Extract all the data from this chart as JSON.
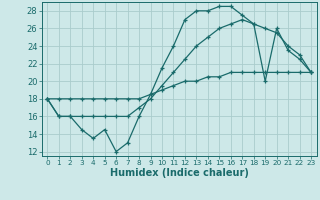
{
  "xlabel": "Humidex (Indice chaleur)",
  "ylabel": "",
  "xlim": [
    -0.5,
    23.5
  ],
  "ylim": [
    11.5,
    29.0
  ],
  "yticks": [
    12,
    14,
    16,
    18,
    20,
    22,
    24,
    26,
    28
  ],
  "xticks": [
    0,
    1,
    2,
    3,
    4,
    5,
    6,
    7,
    8,
    9,
    10,
    11,
    12,
    13,
    14,
    15,
    16,
    17,
    18,
    19,
    20,
    21,
    22,
    23
  ],
  "bg_color": "#cde8e8",
  "grid_color": "#aacccc",
  "line_color": "#1a6b6b",
  "line1_x": [
    0,
    1,
    2,
    3,
    4,
    5,
    6,
    7,
    8,
    9,
    10,
    11,
    12,
    13,
    14,
    15,
    16,
    17,
    18,
    19,
    20,
    21,
    22,
    23
  ],
  "line1_y": [
    18,
    16,
    16,
    14.5,
    13.5,
    14.5,
    12,
    13,
    16,
    18.5,
    21.5,
    24,
    27,
    28,
    28,
    28.5,
    28.5,
    27.5,
    26.5,
    20,
    26,
    23.5,
    22.5,
    21
  ],
  "line2_x": [
    0,
    1,
    2,
    3,
    4,
    5,
    6,
    7,
    8,
    9,
    10,
    11,
    12,
    13,
    14,
    15,
    16,
    17,
    18,
    19,
    20,
    21,
    22,
    23
  ],
  "line2_y": [
    18,
    18,
    18,
    18,
    18,
    18,
    18,
    18,
    18,
    18.5,
    19,
    19.5,
    20,
    20,
    20.5,
    20.5,
    21,
    21,
    21,
    21,
    21,
    21,
    21,
    21
  ],
  "line3_x": [
    0,
    1,
    2,
    3,
    4,
    5,
    6,
    7,
    8,
    9,
    10,
    11,
    12,
    13,
    14,
    15,
    16,
    17,
    18,
    19,
    20,
    21,
    22,
    23
  ],
  "line3_y": [
    18,
    16,
    16,
    16,
    16,
    16,
    16,
    16,
    17,
    18,
    19.5,
    21,
    22.5,
    24,
    25,
    26,
    26.5,
    27,
    26.5,
    26,
    25.5,
    24,
    23,
    21
  ],
  "tick_fontsize": 6,
  "xlabel_fontsize": 7
}
